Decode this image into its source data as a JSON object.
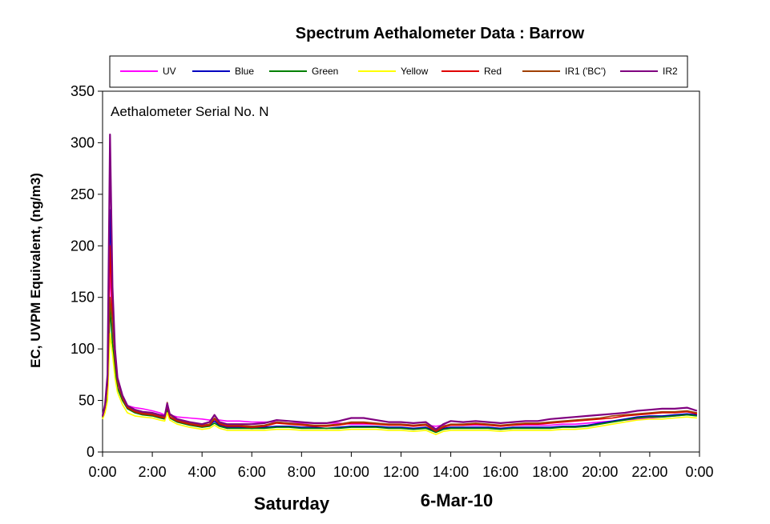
{
  "chart_data": {
    "type": "line",
    "title": "Spectrum Aethalometer Data  :  Barrow",
    "ylabel": "EC, UVPM Equivalent, (ng/m3)",
    "annotation": "Aethalometer  Serial No. N",
    "day_label": "Saturday",
    "date_label": "6-Mar-10",
    "ylim": [
      0,
      350
    ],
    "xlim": [
      0,
      24
    ],
    "yticks": [
      0,
      50,
      100,
      150,
      200,
      250,
      300,
      350
    ],
    "xtick_labels": [
      "0:00",
      "2:00",
      "4:00",
      "6:00",
      "8:00",
      "10:00",
      "12:00",
      "14:00",
      "16:00",
      "18:00",
      "20:00",
      "22:00",
      "0:00"
    ],
    "grid": false,
    "legend_position": "top",
    "x": [
      0.0,
      0.1,
      0.2,
      0.3,
      0.4,
      0.5,
      0.6,
      0.8,
      1.0,
      1.3,
      1.6,
      2.0,
      2.3,
      2.5,
      2.6,
      2.7,
      3.0,
      3.5,
      4.0,
      4.3,
      4.5,
      4.7,
      5.0,
      5.5,
      6.0,
      6.5,
      7.0,
      7.5,
      8.0,
      8.5,
      9.0,
      9.5,
      10.0,
      10.5,
      11.0,
      11.5,
      12.0,
      12.5,
      13.0,
      13.4,
      13.7,
      14.0,
      14.5,
      15.0,
      15.5,
      16.0,
      16.5,
      17.0,
      17.5,
      18.0,
      18.5,
      19.0,
      19.5,
      20.0,
      20.5,
      21.0,
      21.5,
      22.0,
      22.5,
      23.0,
      23.5,
      23.9
    ],
    "series": [
      {
        "name": "UV",
        "color": "#ff00ff",
        "values": [
          35,
          42,
          60,
          180,
          120,
          85,
          65,
          52,
          45,
          43,
          42,
          40,
          38,
          36,
          38,
          36,
          34,
          33,
          32,
          31,
          32,
          31,
          30,
          30,
          29,
          29,
          29,
          28,
          28,
          28,
          28,
          28,
          27,
          27,
          27,
          27,
          27,
          26,
          26,
          25,
          26,
          26,
          26,
          26,
          26,
          25,
          26,
          26,
          26,
          26,
          27,
          27,
          28,
          29,
          30,
          31,
          32,
          33,
          34,
          35,
          36,
          36
        ]
      },
      {
        "name": "Blue",
        "color": "#0000c0",
        "values": [
          34,
          44,
          70,
          235,
          140,
          95,
          70,
          54,
          44,
          40,
          38,
          36,
          34,
          33,
          42,
          34,
          30,
          27,
          25,
          26,
          30,
          26,
          24,
          24,
          23,
          24,
          25,
          25,
          24,
          24,
          23,
          24,
          25,
          25,
          25,
          24,
          24,
          23,
          24,
          20,
          23,
          24,
          24,
          24,
          24,
          23,
          24,
          24,
          24,
          24,
          25,
          25,
          26,
          28,
          30,
          32,
          34,
          35,
          35,
          36,
          37,
          36
        ]
      },
      {
        "name": "Green",
        "color": "#008000",
        "values": [
          33,
          40,
          55,
          140,
          105,
          80,
          62,
          50,
          42,
          38,
          36,
          35,
          33,
          32,
          40,
          33,
          29,
          26,
          24,
          25,
          28,
          25,
          23,
          23,
          23,
          23,
          24,
          24,
          23,
          23,
          23,
          23,
          24,
          24,
          24,
          23,
          23,
          22,
          23,
          19,
          22,
          23,
          23,
          23,
          23,
          22,
          23,
          23,
          23,
          23,
          24,
          24,
          25,
          27,
          29,
          31,
          33,
          34,
          34,
          35,
          36,
          35
        ]
      },
      {
        "name": "Yellow",
        "color": "#ffff00",
        "values": [
          32,
          38,
          50,
          115,
          95,
          72,
          58,
          46,
          38,
          35,
          34,
          33,
          31,
          30,
          38,
          31,
          27,
          24,
          22,
          23,
          26,
          23,
          21,
          21,
          21,
          21,
          22,
          22,
          21,
          21,
          21,
          21,
          22,
          22,
          22,
          21,
          21,
          20,
          21,
          17,
          20,
          21,
          21,
          21,
          21,
          20,
          21,
          21,
          21,
          21,
          22,
          22,
          23,
          25,
          27,
          29,
          31,
          32,
          32,
          33,
          34,
          33
        ]
      },
      {
        "name": "Red",
        "color": "#e00000",
        "values": [
          34,
          43,
          65,
          200,
          130,
          90,
          68,
          52,
          43,
          39,
          37,
          36,
          34,
          33,
          45,
          34,
          30,
          27,
          25,
          26,
          32,
          27,
          25,
          25,
          24,
          25,
          28,
          27,
          26,
          25,
          25,
          26,
          28,
          28,
          27,
          26,
          26,
          25,
          26,
          20,
          24,
          26,
          26,
          27,
          26,
          25,
          26,
          27,
          27,
          28,
          29,
          30,
          31,
          32,
          33,
          35,
          36,
          37,
          38,
          38,
          39,
          37
        ]
      },
      {
        "name": "IR1 ('BC')",
        "color": "#a04000",
        "values": [
          34,
          44,
          68,
          150,
          125,
          92,
          68,
          53,
          44,
          40,
          38,
          37,
          35,
          34,
          48,
          36,
          31,
          28,
          26,
          27,
          33,
          28,
          26,
          26,
          25,
          26,
          29,
          28,
          27,
          26,
          26,
          27,
          29,
          29,
          28,
          27,
          27,
          26,
          27,
          21,
          25,
          27,
          27,
          28,
          27,
          26,
          27,
          28,
          28,
          29,
          30,
          31,
          32,
          33,
          35,
          36,
          37,
          38,
          39,
          39,
          40,
          38
        ]
      },
      {
        "name": "IR2",
        "color": "#800080",
        "values": [
          35,
          46,
          75,
          308,
          160,
          100,
          72,
          55,
          45,
          41,
          39,
          38,
          36,
          35,
          47,
          37,
          32,
          29,
          27,
          29,
          36,
          29,
          27,
          27,
          27,
          28,
          31,
          30,
          29,
          28,
          28,
          30,
          33,
          33,
          31,
          29,
          29,
          28,
          29,
          22,
          27,
          30,
          29,
          30,
          29,
          28,
          29,
          30,
          30,
          32,
          33,
          34,
          35,
          36,
          37,
          38,
          40,
          41,
          42,
          42,
          43,
          40
        ]
      }
    ]
  }
}
